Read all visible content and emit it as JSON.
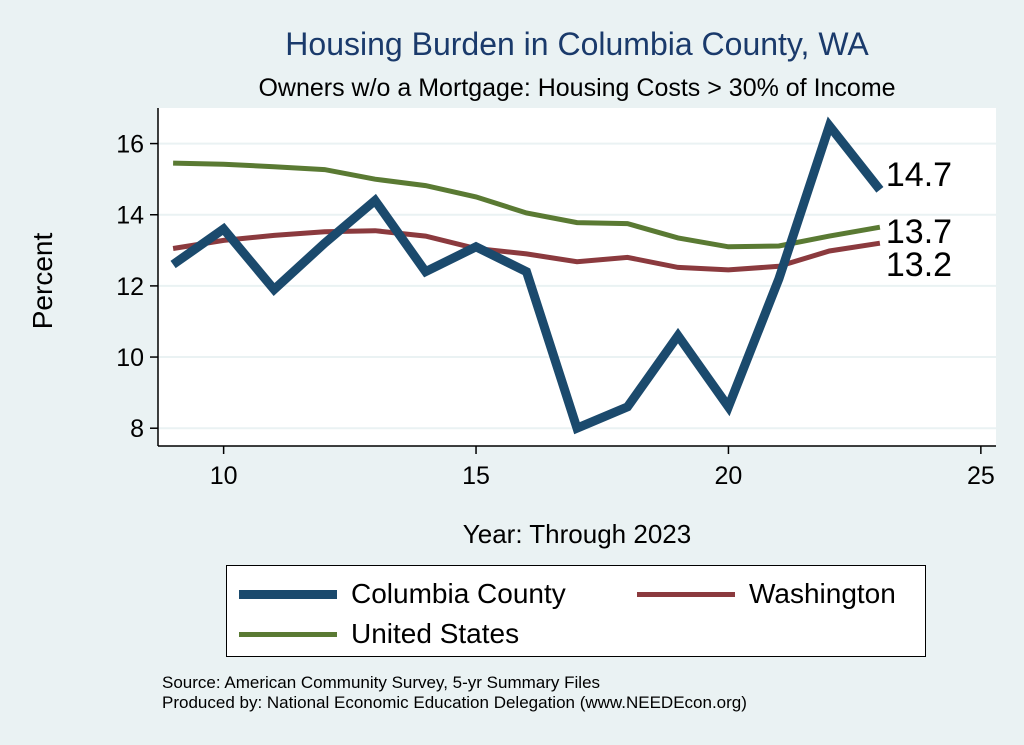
{
  "chart_data": {
    "type": "line",
    "title": "Housing Burden in Columbia County, WA",
    "subtitle": "Owners w/o a Mortgage: Housing Costs > 30% of Income",
    "xlabel": "Year: Through 2023",
    "ylabel": "Percent",
    "xlim": [
      8.7,
      25.3
    ],
    "ylim": [
      7.5,
      17.0
    ],
    "xticks": [
      10,
      15,
      20,
      25
    ],
    "yticks": [
      8,
      10,
      12,
      14,
      16
    ],
    "grid": true,
    "x": [
      9,
      10,
      11,
      12,
      13,
      14,
      15,
      16,
      17,
      18,
      19,
      20,
      21,
      22,
      23
    ],
    "series": [
      {
        "name": "Columbia County",
        "color": "#1b4a6d",
        "width": 9,
        "values": [
          12.6,
          13.6,
          11.9,
          13.2,
          14.4,
          12.4,
          13.1,
          12.4,
          8.0,
          8.6,
          10.6,
          8.6,
          12.2,
          16.5,
          14.7
        ],
        "end_label": "14.7"
      },
      {
        "name": "Washington",
        "color": "#8b3a3e",
        "width": 5,
        "values": [
          13.05,
          13.28,
          13.42,
          13.52,
          13.55,
          13.4,
          13.05,
          12.9,
          12.68,
          12.8,
          12.52,
          12.45,
          12.55,
          12.98,
          13.2
        ],
        "end_label": "13.2"
      },
      {
        "name": "United States",
        "color": "#5a7a33",
        "width": 5,
        "values": [
          15.45,
          15.42,
          15.35,
          15.27,
          15.0,
          14.82,
          14.5,
          14.05,
          13.78,
          13.75,
          13.35,
          13.1,
          13.12,
          13.4,
          13.65
        ],
        "end_label": "13.7"
      }
    ],
    "legend_position": "bottom",
    "source_lines": [
      "Source: American Community Survey, 5-yr Summary Files",
      "Produced by: National Economic Education Delegation (www.NEEDEcon.org)"
    ]
  }
}
